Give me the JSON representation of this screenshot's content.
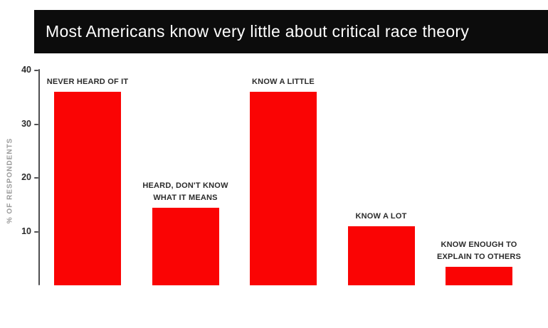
{
  "chart_data": {
    "type": "bar",
    "title": "Most Americans know very little about critical race theory",
    "xlabel": "",
    "ylabel": "% OF RESPONDENTS",
    "ylim": [
      0,
      40
    ],
    "yticks": [
      10,
      20,
      30,
      40
    ],
    "grid": false,
    "legend": "none",
    "bar_color": "#fa0404",
    "categories": [
      "NEVER HEARD OF IT",
      "HEARD, DON'T KNOW WHAT IT MEANS",
      "KNOW A LITTLE",
      "KNOW A LOT",
      "KNOW ENOUGH TO EXPLAIN TO OTHERS"
    ],
    "values": [
      36,
      14.5,
      36,
      11,
      3.5
    ],
    "bars": [
      {
        "label_lines": [
          "NEVER HEARD OF IT"
        ],
        "value": 36
      },
      {
        "label_lines": [
          "HEARD, DON'T KNOW",
          "WHAT IT MEANS"
        ],
        "value": 14.5
      },
      {
        "label_lines": [
          "KNOW A LITTLE"
        ],
        "value": 36
      },
      {
        "label_lines": [
          "KNOW A LOT"
        ],
        "value": 11
      },
      {
        "label_lines": [
          "KNOW ENOUGH TO",
          "EXPLAIN TO OTHERS"
        ],
        "value": 3.5
      }
    ]
  },
  "colors": {
    "background": "#ffffff",
    "banner_bg": "#0c0c0c",
    "banner_text": "#ffffff",
    "bar": "#fa0404",
    "axis": "#4f4f51",
    "tick_label": "#2c2c2c",
    "bar_label": "#2b2b2b",
    "y_axis_title": "#9b9b9b"
  }
}
